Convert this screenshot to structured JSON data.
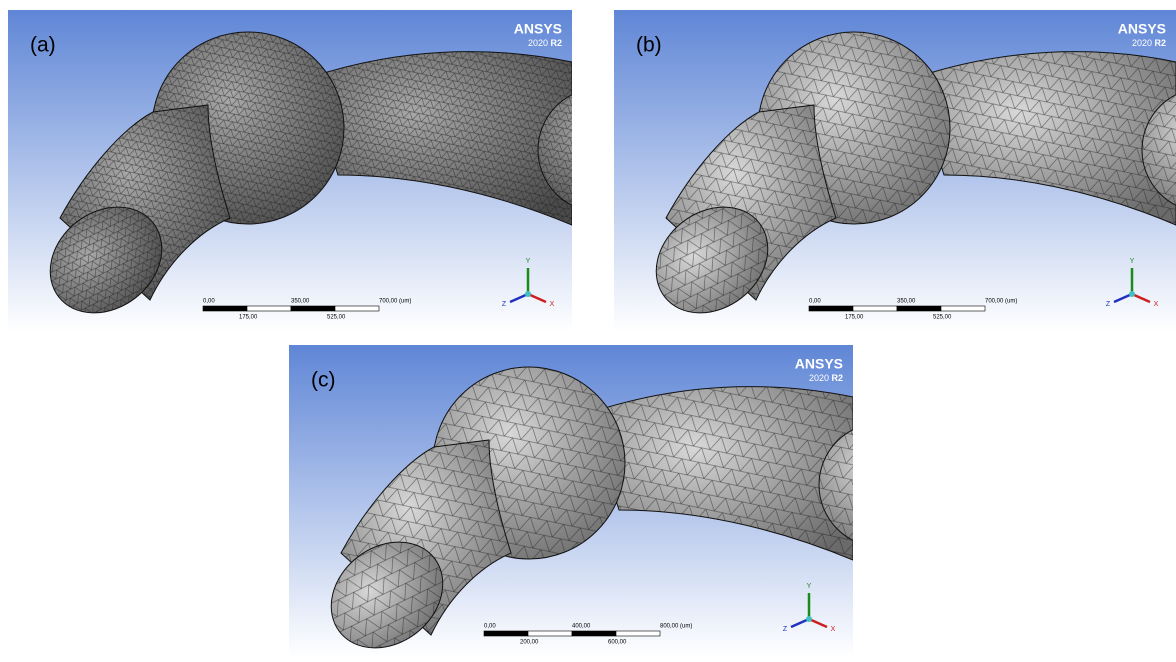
{
  "panels": [
    {
      "label": "(a)",
      "logo": "ANSYS",
      "version": "2020",
      "release": "R2",
      "scale_top": [
        "0,00",
        "350,00",
        "700,00 (um)"
      ],
      "scale_bottom": [
        "175,00",
        "525,00"
      ],
      "axes": [
        "Y",
        "Z",
        "X"
      ]
    },
    {
      "label": "(b)",
      "logo": "ANSYS",
      "version": "2020",
      "release": "R2",
      "scale_top": [
        "0,00",
        "350,00",
        "700,00 (um)"
      ],
      "scale_bottom": [
        "175,00",
        "525,00"
      ],
      "axes": [
        "Y",
        "Z",
        "X"
      ]
    },
    {
      "label": "(c)",
      "logo": "ANSYS",
      "version": "2020",
      "release": "R2",
      "scale_top": [
        "0,00",
        "400,00",
        "800,00 (um)"
      ],
      "scale_bottom": [
        "200,00",
        "600,00"
      ],
      "axes": [
        "Y",
        "Z",
        "X"
      ]
    }
  ]
}
